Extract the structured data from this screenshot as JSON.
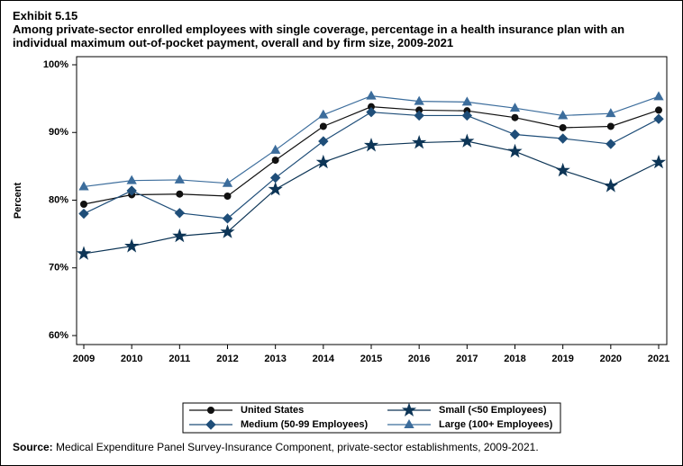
{
  "chart_data": {
    "type": "line",
    "label": "Exhibit 5.15",
    "title": "Among private-sector enrolled employees with single coverage, percentage in a health insurance plan with an individual maximum out-of-pocket payment, overall and by firm size, 2009-2021",
    "y_label": "Percent",
    "source_label": "Source:",
    "source": "Medical Expenditure Panel Survey-Insurance Component, private-sector establishments, 2009-2021.",
    "categories": [
      "2009",
      "2010",
      "2011",
      "2012",
      "2013",
      "2014",
      "2015",
      "2016",
      "2017",
      "2018",
      "2019",
      "2020",
      "2021"
    ],
    "ylim": [
      60,
      100
    ],
    "yticks": [
      {
        "value": 60,
        "label": "60%"
      },
      {
        "value": 70,
        "label": "70%"
      },
      {
        "value": 80,
        "label": "80%"
      },
      {
        "value": 90,
        "label": "90%"
      },
      {
        "value": 100,
        "label": "100%"
      }
    ],
    "series": [
      {
        "name": "United States",
        "color": "#111111",
        "marker": "circle",
        "values": [
          79.4,
          80.8,
          80.9,
          80.6,
          85.9,
          90.9,
          93.8,
          93.3,
          93.2,
          92.2,
          90.7,
          90.9,
          93.3
        ]
      },
      {
        "name": "Small (<50 Employees)",
        "color": "#0d3556",
        "marker": "star",
        "values": [
          72.1,
          73.2,
          74.7,
          75.3,
          81.6,
          85.6,
          88.1,
          88.5,
          88.7,
          87.2,
          84.4,
          82.1,
          85.6
        ]
      },
      {
        "name": "Medium (50-99 Employees)",
        "color": "#1f4e79",
        "marker": "diamond",
        "values": [
          78.0,
          81.4,
          78.1,
          77.3,
          83.3,
          88.7,
          93.0,
          92.5,
          92.5,
          89.7,
          89.1,
          88.3,
          92.0
        ]
      },
      {
        "name": "Large (100+ Employees)",
        "color": "#3c6d9c",
        "marker": "triangle",
        "values": [
          82.0,
          82.9,
          83.0,
          82.5,
          87.4,
          92.6,
          95.4,
          94.6,
          94.5,
          93.6,
          92.5,
          92.8,
          95.3
        ]
      }
    ]
  }
}
